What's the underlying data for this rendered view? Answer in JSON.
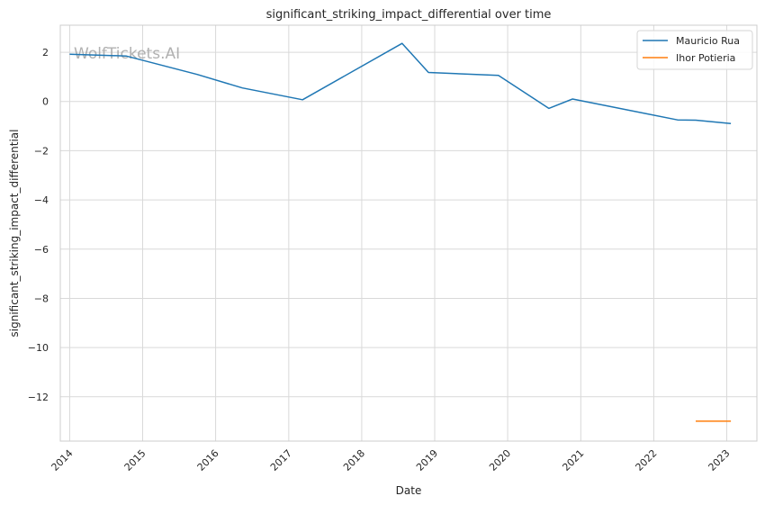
{
  "chart_data": {
    "type": "line",
    "title": "significant_striking_impact_differential over time",
    "xlabel": "Date",
    "ylabel": "significant_striking_impact_differential",
    "xlim": [
      "2013-11-15",
      "2023-06-01"
    ],
    "ylim": [
      -13.8,
      3.1
    ],
    "xticks": [
      "2014",
      "2015",
      "2016",
      "2017",
      "2018",
      "2019",
      "2020",
      "2021",
      "2022",
      "2023"
    ],
    "yticks": [
      2,
      0,
      -2,
      -4,
      -6,
      -8,
      -10,
      -12
    ],
    "ytick_labels": [
      "2",
      "0",
      "−2",
      "−4",
      "−6",
      "−8",
      "−10",
      "−12"
    ],
    "grid": true,
    "legend_position": "top-right",
    "watermark": "WolfTickets.AI",
    "series": [
      {
        "name": "Mauricio Rua",
        "color": "#1f77b4",
        "points": [
          [
            "2014-01-01",
            1.92
          ],
          [
            "2014-10-10",
            1.85
          ],
          [
            "2015-10-01",
            1.1
          ],
          [
            "2016-05-14",
            0.55
          ],
          [
            "2017-03-11",
            0.07
          ],
          [
            "2018-07-22",
            2.36
          ],
          [
            "2018-12-01",
            1.18
          ],
          [
            "2019-11-16",
            1.06
          ],
          [
            "2020-07-25",
            -0.28
          ],
          [
            "2020-11-21",
            0.1
          ],
          [
            "2022-04-30",
            -0.75
          ],
          [
            "2022-07-30",
            -0.76
          ],
          [
            "2023-01-22",
            -0.9
          ]
        ]
      },
      {
        "name": "Ihor Potieria",
        "color": "#ff7f0e",
        "points": [
          [
            "2022-07-30",
            -12.99
          ],
          [
            "2023-01-22",
            -12.99
          ]
        ]
      }
    ]
  }
}
